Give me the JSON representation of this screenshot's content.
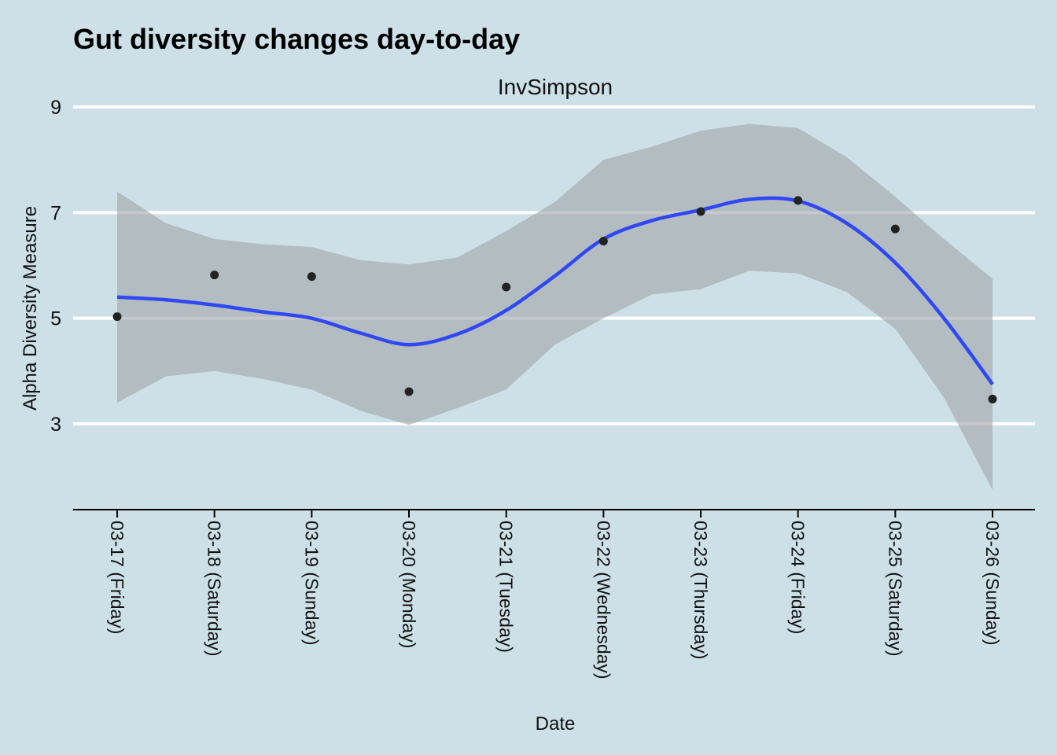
{
  "chart_data": {
    "type": "scatter",
    "title": "Gut diversity changes day-to-day",
    "facet": "InvSimpson",
    "xlabel": "Date",
    "ylabel": "Alpha Diversity Measure",
    "categories": [
      "03-17 (Friday)",
      "03-18 (Saturday)",
      "03-19 (Sunday)",
      "03-20 (Monday)",
      "03-21 (Tuesday)",
      "03-22 (Wednesday)",
      "03-23 (Thursday)",
      "03-24 (Friday)",
      "03-25 (Saturday)",
      "03-26 (Sunday)"
    ],
    "yticks": [
      3,
      5,
      7,
      9
    ],
    "ylim": [
      1.4,
      9.0
    ],
    "grid": true,
    "points": [
      5.03,
      5.82,
      5.79,
      3.61,
      5.59,
      6.46,
      7.02,
      7.23,
      6.69,
      3.47
    ],
    "smooth": {
      "x": [
        0,
        0.5,
        1,
        1.5,
        2,
        2.5,
        3,
        3.5,
        4,
        4.5,
        5,
        5.5,
        6,
        6.5,
        7,
        7.5,
        8,
        8.5,
        9
      ],
      "fit": [
        5.4,
        5.35,
        5.25,
        5.12,
        5.0,
        4.72,
        4.5,
        4.7,
        5.15,
        5.8,
        6.5,
        6.85,
        7.05,
        7.25,
        7.22,
        6.8,
        6.05,
        5.0,
        3.75
      ],
      "upper": [
        7.4,
        6.8,
        6.5,
        6.4,
        6.35,
        6.1,
        6.02,
        6.15,
        6.65,
        7.2,
        8.0,
        8.25,
        8.55,
        8.68,
        8.6,
        8.05,
        7.3,
        6.5,
        5.75
      ],
      "lower": [
        3.4,
        3.9,
        4.0,
        3.85,
        3.65,
        3.25,
        2.98,
        3.3,
        3.65,
        4.5,
        5.0,
        5.45,
        5.55,
        5.9,
        5.85,
        5.5,
        4.8,
        3.5,
        1.75
      ]
    },
    "colors": {
      "background": "#cde0e7",
      "fit_line": "#3048f4",
      "ribbon": "#a0a4a8",
      "points": "#222222",
      "grid": "#ffffff"
    }
  }
}
